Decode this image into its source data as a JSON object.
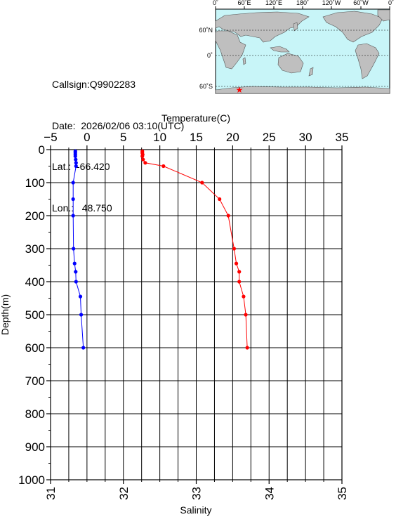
{
  "station": {
    "callsign_line": "Callsign:Q9902283",
    "date_line": "Date:  2026/02/06 03:10(UTC)",
    "lat_line": "Lat.:  -66.420",
    "lon_line": "Lon.:   48.750"
  },
  "colors": {
    "temperature": "#ff0000",
    "salinity": "#0000ff",
    "ocean": "#c8f5f8",
    "land": "#bfbfbf",
    "grid": "#000000",
    "marker": "#ff0000"
  },
  "map": {
    "lon_labels": [
      "0˚",
      "60˚E",
      "120˚E",
      "180˚",
      "120˚W",
      "60˚W",
      "0˚"
    ],
    "lat_labels": [
      "60˚N",
      "0˚",
      "60˚S"
    ],
    "marker": {
      "lon": 48.75,
      "lat": -66.42,
      "icon": "star-icon"
    }
  },
  "chart_data": {
    "type": "line",
    "title": "",
    "y_axis": {
      "label": "Depth(m)",
      "range": [
        0,
        1000
      ],
      "ticks": [
        "0",
        "100",
        "200",
        "300",
        "400",
        "500",
        "600",
        "700",
        "800",
        "900",
        "1000"
      ],
      "inverted": true
    },
    "x_top_axis": {
      "label": "Temperature(C)",
      "range": [
        -5,
        35
      ],
      "ticks": [
        "−5",
        "0",
        "5",
        "10",
        "15",
        "20",
        "25",
        "30",
        "35"
      ]
    },
    "x_bottom_axis": {
      "label": "Salinity",
      "range": [
        31,
        35
      ],
      "ticks": [
        "31",
        "32",
        "33",
        "34",
        "35"
      ]
    },
    "grid": true,
    "series": [
      {
        "name": "Temperature(C)",
        "axis": "top",
        "points": [
          {
            "depth": 5,
            "value": 7.6
          },
          {
            "depth": 10,
            "value": 7.6
          },
          {
            "depth": 15,
            "value": 7.65
          },
          {
            "depth": 20,
            "value": 7.6
          },
          {
            "depth": 30,
            "value": 7.7
          },
          {
            "depth": 40,
            "value": 8.0
          },
          {
            "depth": 50,
            "value": 10.5
          },
          {
            "depth": 100,
            "value": 15.8
          },
          {
            "depth": 150,
            "value": 18.2
          },
          {
            "depth": 200,
            "value": 19.4
          },
          {
            "depth": 300,
            "value": 20.2
          },
          {
            "depth": 345,
            "value": 20.5
          },
          {
            "depth": 370,
            "value": 20.9
          },
          {
            "depth": 400,
            "value": 20.9
          },
          {
            "depth": 445,
            "value": 21.5
          },
          {
            "depth": 500,
            "value": 21.8
          },
          {
            "depth": 600,
            "value": 22.0
          }
        ]
      },
      {
        "name": "Salinity",
        "axis": "bottom",
        "points": [
          {
            "depth": 5,
            "value": 31.34
          },
          {
            "depth": 10,
            "value": 31.34
          },
          {
            "depth": 15,
            "value": 31.34
          },
          {
            "depth": 20,
            "value": 31.34
          },
          {
            "depth": 30,
            "value": 31.345
          },
          {
            "depth": 40,
            "value": 31.35
          },
          {
            "depth": 50,
            "value": 31.35
          },
          {
            "depth": 100,
            "value": 31.31
          },
          {
            "depth": 150,
            "value": 31.31
          },
          {
            "depth": 200,
            "value": 31.31
          },
          {
            "depth": 300,
            "value": 31.315
          },
          {
            "depth": 345,
            "value": 31.33
          },
          {
            "depth": 370,
            "value": 31.345
          },
          {
            "depth": 400,
            "value": 31.35
          },
          {
            "depth": 445,
            "value": 31.41
          },
          {
            "depth": 500,
            "value": 31.42
          },
          {
            "depth": 600,
            "value": 31.45
          }
        ]
      }
    ]
  }
}
